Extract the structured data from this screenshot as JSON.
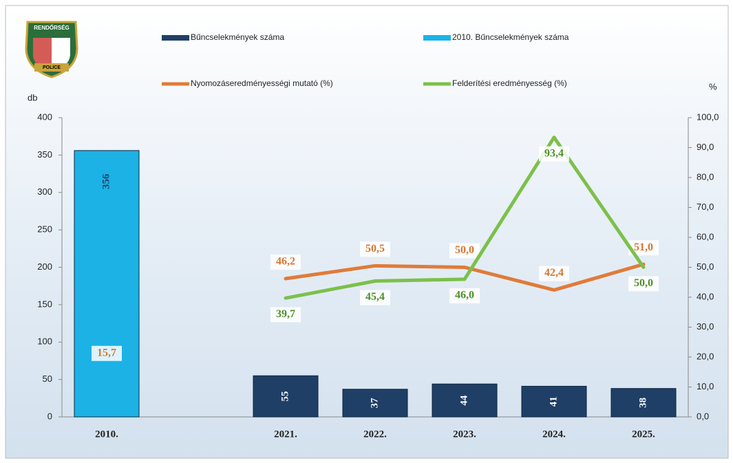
{
  "logo": {
    "top": "RENDŐRSÉG",
    "bottom": "POLICE"
  },
  "chart_data": {
    "type": "combo",
    "y_label": "db",
    "y2_label": "%",
    "categories": [
      "2010.",
      null,
      "2021.",
      "2022.",
      "2023.",
      "2024.",
      "2025."
    ],
    "ylim": [
      0,
      400
    ],
    "yticks": [
      0,
      50,
      100,
      150,
      200,
      250,
      300,
      350,
      400
    ],
    "y2lim": [
      0,
      100
    ],
    "y2ticks": [
      {
        "value": 0,
        "label": "0,0"
      },
      {
        "value": 10,
        "label": "10,0"
      },
      {
        "value": 20,
        "label": "20,0"
      },
      {
        "value": 30,
        "label": "30,0"
      },
      {
        "value": 40,
        "label": "40,0"
      },
      {
        "value": 50,
        "label": "50,0"
      },
      {
        "value": 60,
        "label": "60,0"
      },
      {
        "value": 70,
        "label": "70,0"
      },
      {
        "value": 80,
        "label": "80,0"
      },
      {
        "value": 90,
        "label": "90,0"
      },
      {
        "value": 100,
        "label": "100,0"
      }
    ],
    "series": [
      {
        "name": "Bűncselekmények száma",
        "type": "bar",
        "color": "#1f3f66",
        "values": [
          null,
          null,
          55,
          37,
          44,
          41,
          38
        ]
      },
      {
        "name": "2010. Bűncselekmények száma",
        "type": "bar",
        "color": "#1cb2e6",
        "values": [
          356,
          null,
          null,
          null,
          null,
          null,
          null
        ]
      },
      {
        "name": "Nyomozáseredményességi mutató (%)",
        "type": "line",
        "axis": "y2",
        "color": "#e07b39",
        "values": [
          15.7,
          null,
          46.2,
          50.5,
          50.0,
          42.4,
          51.0
        ],
        "value_labels": [
          "15,7",
          null,
          "46,2",
          "50,5",
          "50,0",
          "42,4",
          "51,0"
        ]
      },
      {
        "name": "Felderítési eredményesség (%)",
        "type": "line",
        "axis": "y2",
        "color": "#7cc04a",
        "values": [
          null,
          null,
          39.7,
          45.4,
          46.0,
          93.4,
          50.0
        ],
        "value_labels": [
          null,
          null,
          "39,7",
          "45,4",
          "46,0",
          "93,4",
          "50,0"
        ]
      }
    ]
  }
}
